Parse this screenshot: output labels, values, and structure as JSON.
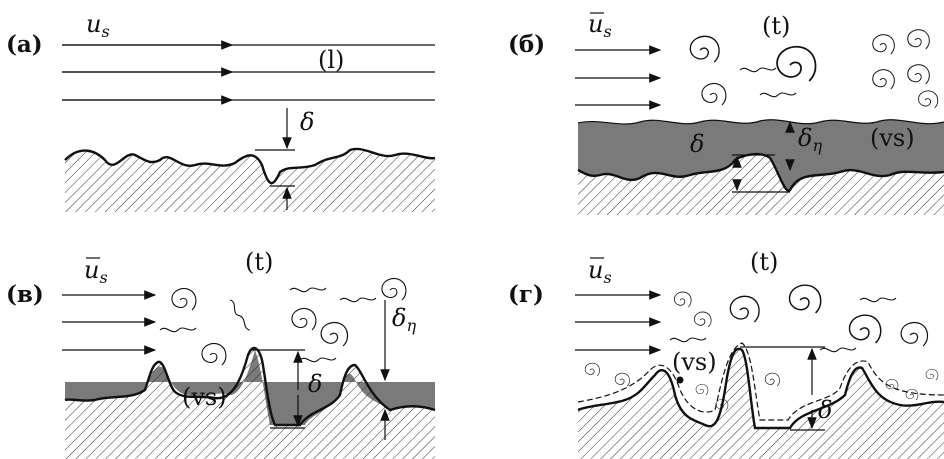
{
  "panels": [
    {
      "label": "(а)",
      "velocity": {
        "symbol": "u",
        "sub": "s"
      },
      "regime": "(l)",
      "thickness": "δ"
    },
    {
      "label": "(б)",
      "velocity": {
        "symbol": "u",
        "sub": "s"
      },
      "regime": "(t)",
      "thickness": "δ",
      "sublayer": {
        "symbol": "δ",
        "sub": "η"
      },
      "sublayer_label": "(vs)"
    },
    {
      "label": "(в)",
      "velocity": {
        "symbol": "u",
        "sub": "s"
      },
      "regime": "(t)",
      "thickness": "δ",
      "sublayer": {
        "symbol": "δ",
        "sub": "η"
      },
      "sublayer_label": "(vs)"
    },
    {
      "label": "(г)",
      "velocity": {
        "symbol": "u",
        "sub": "s"
      },
      "regime": "(t)",
      "thickness": "δ",
      "sublayer_label": "(vs)"
    }
  ]
}
